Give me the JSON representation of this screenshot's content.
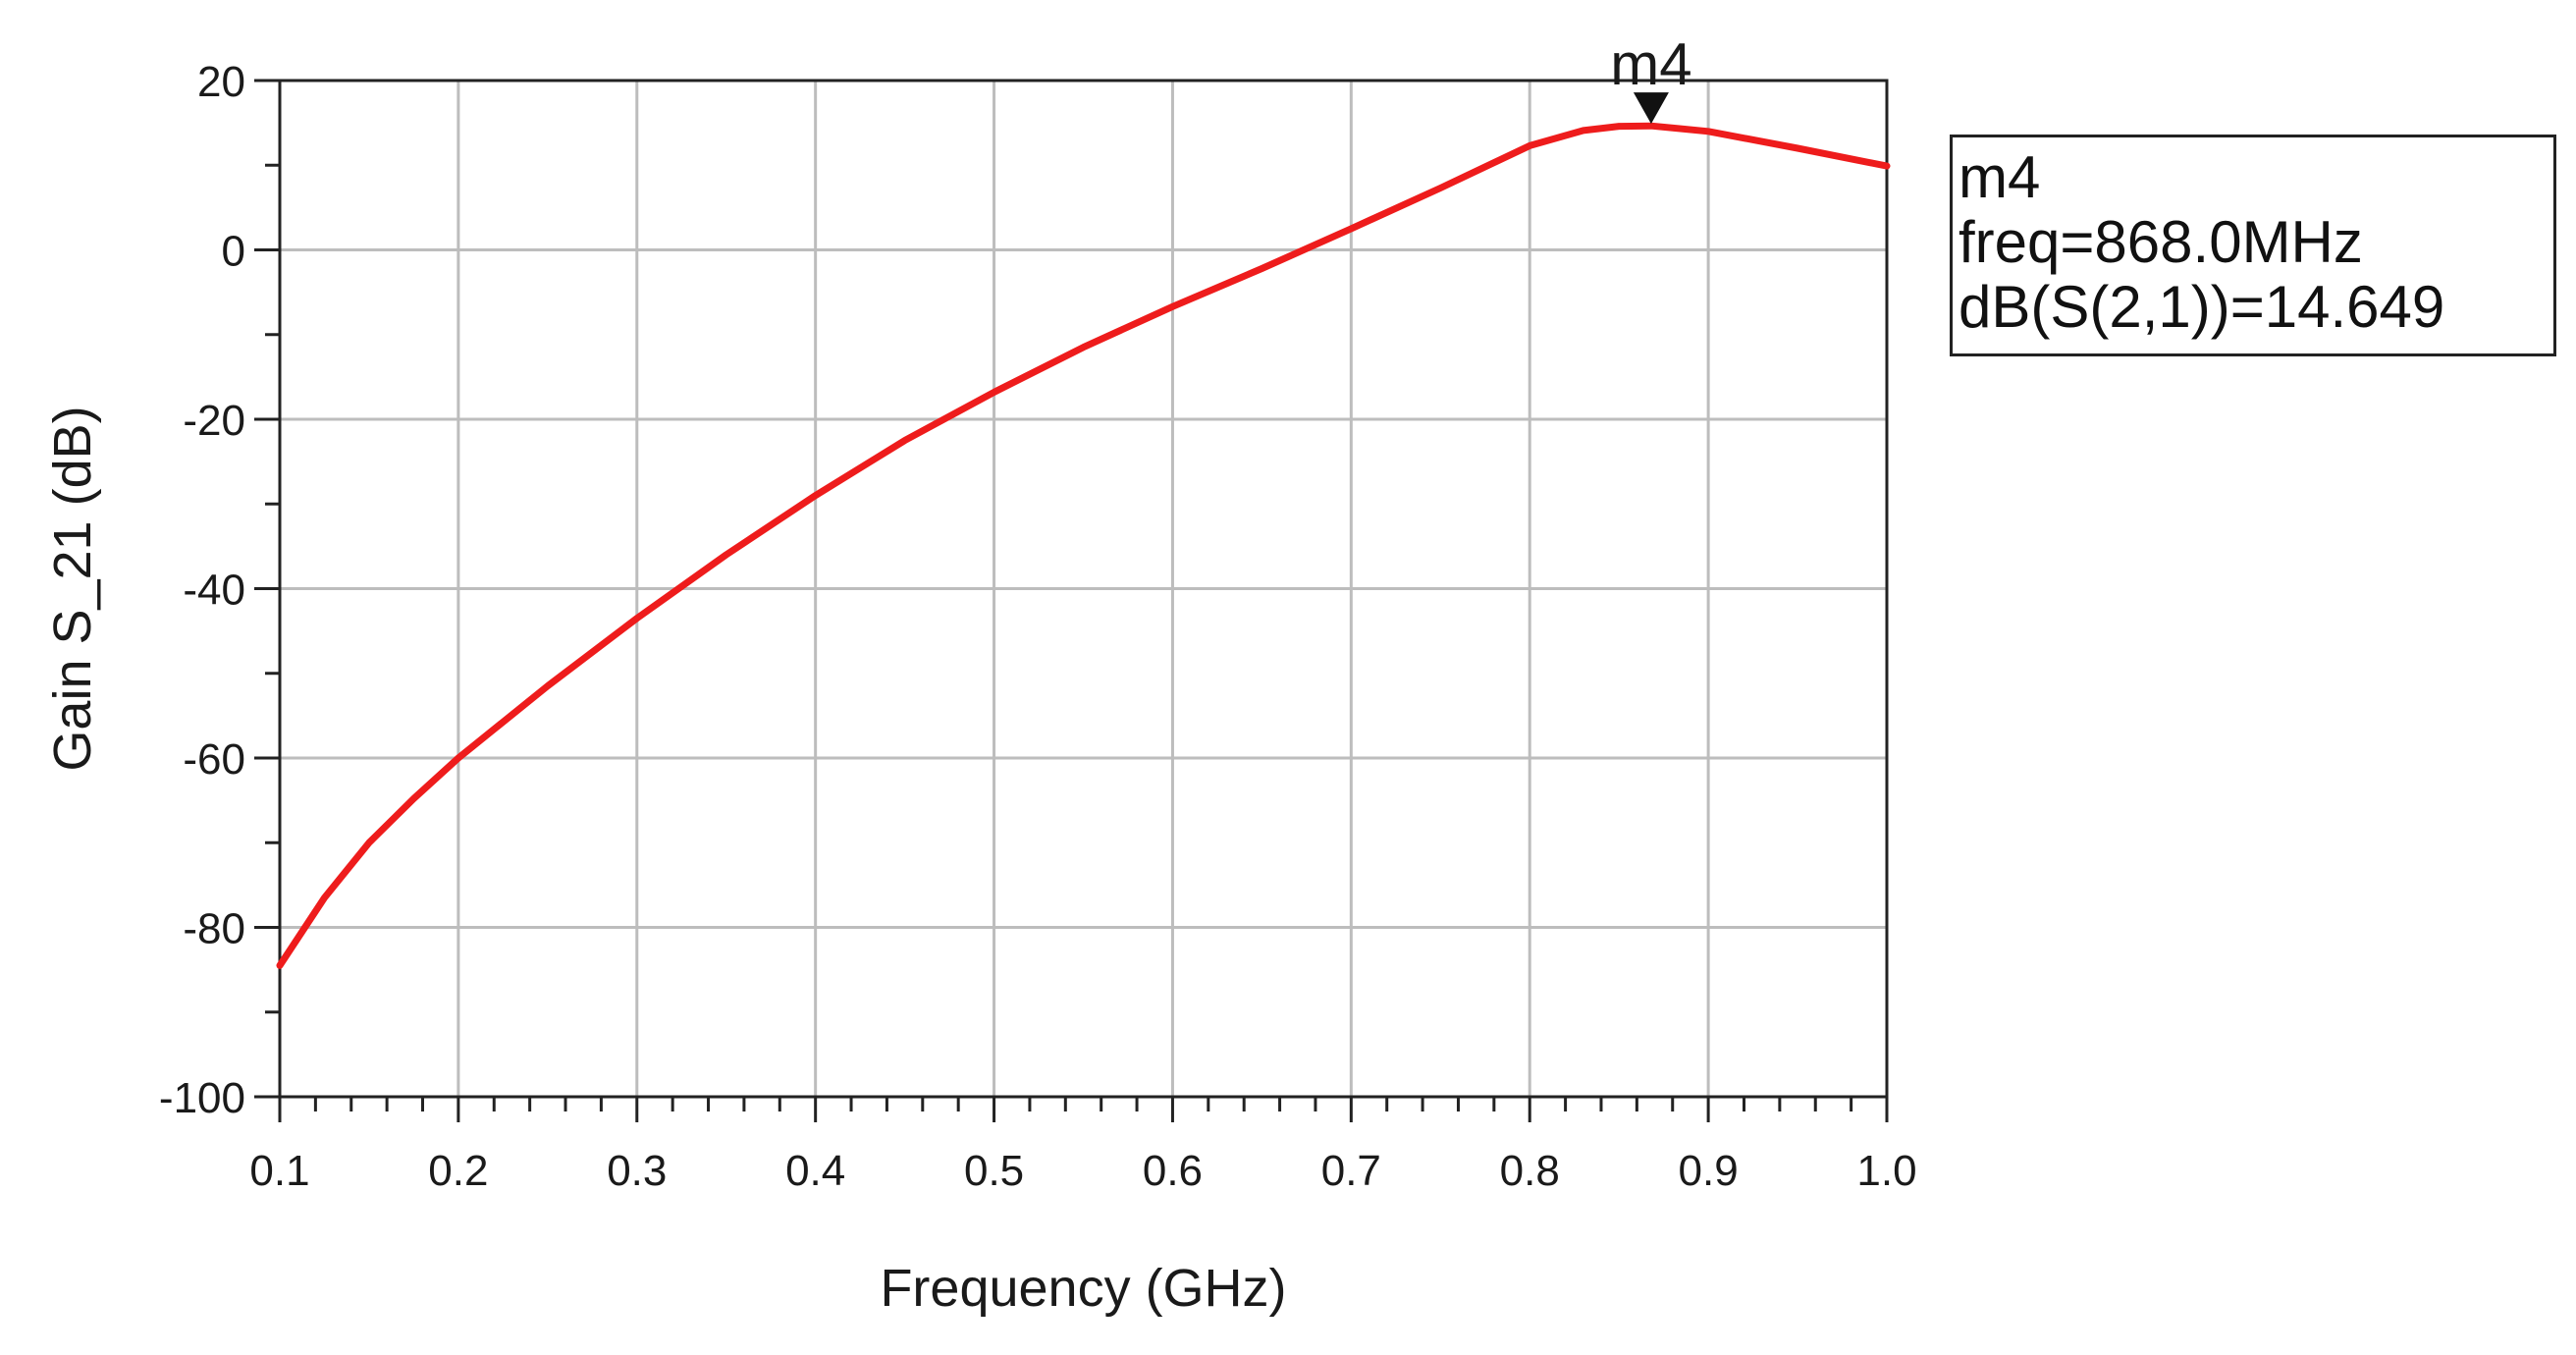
{
  "chart_data": {
    "type": "line",
    "title": "",
    "xlabel": "Frequency (GHz)",
    "ylabel": "Gain S_21 (dB)",
    "xlim": [
      0.1,
      1.0
    ],
    "ylim": [
      -100,
      20
    ],
    "x_ticks": [
      0.1,
      0.2,
      0.3,
      0.4,
      0.5,
      0.6,
      0.7,
      0.8,
      0.9,
      1.0
    ],
    "x_tick_labels": [
      "0.1",
      "0.2",
      "0.3",
      "0.4",
      "0.5",
      "0.6",
      "0.7",
      "0.8",
      "0.9",
      "1.0"
    ],
    "y_ticks": [
      20,
      0,
      -20,
      -40,
      -60,
      -80,
      -100
    ],
    "y_tick_labels": [
      "20",
      "0",
      "-20",
      "-40",
      "-60",
      "-80",
      "-100"
    ],
    "grid": true,
    "series": [
      {
        "color": "#ee1c1c",
        "x": [
          0.1,
          0.125,
          0.15,
          0.175,
          0.2,
          0.25,
          0.3,
          0.35,
          0.4,
          0.45,
          0.5,
          0.55,
          0.6,
          0.65,
          0.7,
          0.75,
          0.8,
          0.83,
          0.85,
          0.868,
          0.9,
          0.95,
          1.0
        ],
        "y": [
          -84.5,
          -76.5,
          -70.0,
          -64.8,
          -60.0,
          -51.5,
          -43.5,
          -36.0,
          -29.0,
          -22.5,
          -16.8,
          -11.5,
          -6.7,
          -2.2,
          2.5,
          7.3,
          12.3,
          14.1,
          14.6,
          14.649,
          14.0,
          12.0,
          9.9
        ]
      }
    ],
    "marker": {
      "name": "m4",
      "x": 0.868,
      "y": 14.649,
      "readout": [
        "m4",
        "freq=868.0MHz",
        "dB(S(2,1))=14.649"
      ]
    }
  }
}
